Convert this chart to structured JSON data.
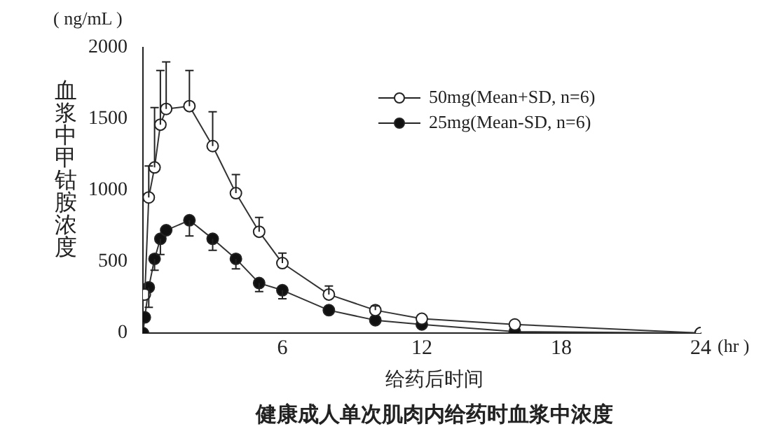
{
  "chart_data": {
    "type": "line",
    "title": "健康成人单次肌肉内给药时血浆中浓度",
    "xlabel": "给药后时间",
    "ylabel": "血浆中甲钴胺浓度",
    "annotations": [
      "( ng/mL )",
      "(hr )"
    ],
    "xlim": [
      0,
      24
    ],
    "xticks": [
      6,
      12,
      18,
      24
    ],
    "ylim": [
      0,
      2000
    ],
    "yticks": [
      0,
      500,
      1000,
      1500,
      2000
    ],
    "grid": false,
    "legend": "top right",
    "marker": "circle",
    "line_style": "solid",
    "series": [
      {
        "name": "50mg(Mean+SD, n=6)",
        "color": "#ffffff",
        "x": [
          0.08,
          0.25,
          0.5,
          0.75,
          1,
          2,
          3,
          4,
          5,
          6,
          8,
          10,
          12,
          16,
          24
        ],
        "values": [
          270,
          950,
          1160,
          1460,
          1570,
          1590,
          1310,
          980,
          710,
          490,
          270,
          160,
          100,
          60,
          0
        ],
        "errors": [
          null,
          [
            950,
            1170
          ],
          [
            1160,
            1580
          ],
          [
            1460,
            1840
          ],
          [
            1570,
            1900
          ],
          [
            1590,
            1840
          ],
          [
            1310,
            1550
          ],
          [
            980,
            1110
          ],
          [
            710,
            810
          ],
          [
            490,
            560
          ],
          [
            270,
            330
          ],
          [
            160,
            190
          ],
          null,
          null,
          null
        ]
      },
      {
        "name": "25mg(Mean-SD, n=6)",
        "color": "#111111",
        "x": [
          0,
          0.08,
          0.25,
          0.5,
          0.75,
          1,
          2,
          3,
          4,
          5,
          6,
          8,
          10,
          12,
          16,
          24
        ],
        "values": [
          0,
          110,
          320,
          520,
          660,
          720,
          790,
          660,
          520,
          350,
          300,
          160,
          90,
          60,
          10,
          0
        ],
        "errors": [
          null,
          null,
          [
            180,
            320
          ],
          [
            440,
            520
          ],
          [
            550,
            660
          ],
          null,
          [
            680,
            790
          ],
          [
            580,
            660
          ],
          [
            450,
            520
          ],
          [
            290,
            350
          ],
          [
            240,
            300
          ],
          null,
          null,
          null,
          null,
          null
        ]
      }
    ]
  }
}
